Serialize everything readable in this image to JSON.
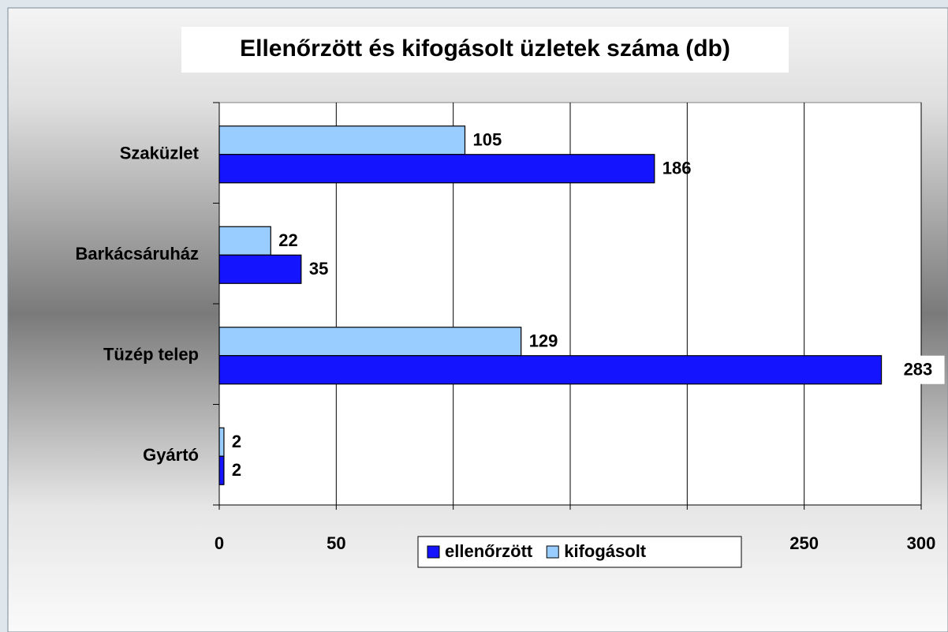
{
  "chart_data": {
    "type": "bar",
    "orientation": "horizontal",
    "title": "Ellenőrzött és kifogásolt üzletek száma (db)",
    "categories": [
      "Szaküzlet",
      "Barkácsáruház",
      "Tüzép telep",
      "Gyártó"
    ],
    "series": [
      {
        "name": "ellenőrzött",
        "color": "#1414ff",
        "values": [
          186,
          35,
          283,
          2
        ]
      },
      {
        "name": "kifogásolt",
        "color": "#99ccff",
        "values": [
          105,
          22,
          129,
          2
        ]
      }
    ],
    "xlim": [
      0,
      300
    ],
    "xticks": [
      0,
      50,
      100,
      150,
      200,
      250,
      300
    ],
    "grid": true,
    "legend": "bottom"
  }
}
